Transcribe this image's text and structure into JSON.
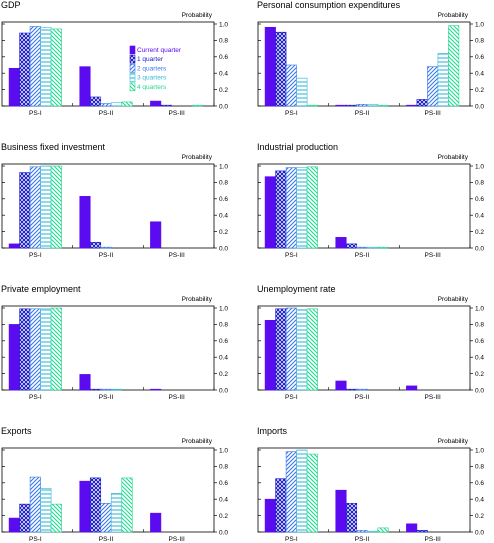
{
  "series_styles": [
    {
      "name": "Current quarter",
      "color": "#5b0bf0",
      "pattern": "solid"
    },
    {
      "name": "1 quarter",
      "color": "#1a1ac8",
      "pattern": "crosshatch"
    },
    {
      "name": "2 quarters",
      "color": "#3a78e8",
      "pattern": "diag-right"
    },
    {
      "name": "3 quarters",
      "color": "#35b8d8",
      "pattern": "horizontal"
    },
    {
      "name": "4 quarters",
      "color": "#22d890",
      "pattern": "diag-left"
    }
  ],
  "chart_data": [
    {
      "type": "bar",
      "title": "GDP",
      "ylabel": "Probability",
      "categories": [
        "PS-I",
        "PS-II",
        "PS-III"
      ],
      "ylim": [
        0,
        1.0
      ],
      "yticks": [
        "0.0",
        "0.2",
        "0.4",
        "0.6",
        "0.8",
        "1.0"
      ],
      "legend": "upper-right",
      "series": [
        {
          "name": "Current quarter",
          "values": [
            0.46,
            0.48,
            0.06
          ]
        },
        {
          "name": "1 quarter",
          "values": [
            0.89,
            0.11,
            0.01
          ]
        },
        {
          "name": "2 quarters",
          "values": [
            0.97,
            0.03,
            0.0
          ]
        },
        {
          "name": "3 quarters",
          "values": [
            0.96,
            0.04,
            0.0
          ]
        },
        {
          "name": "4 quarters",
          "values": [
            0.94,
            0.05,
            0.01
          ]
        }
      ]
    },
    {
      "type": "bar",
      "title": "Personal consumption expenditures",
      "ylabel": "Probability",
      "categories": [
        "PS-I",
        "PS-II",
        "PS-III"
      ],
      "ylim": [
        0,
        1.0
      ],
      "yticks": [
        "0.0",
        "0.2",
        "0.4",
        "0.6",
        "0.8",
        "1.0"
      ],
      "series": [
        {
          "name": "Current quarter",
          "values": [
            0.96,
            0.01,
            0.01
          ]
        },
        {
          "name": "1 quarter",
          "values": [
            0.9,
            0.01,
            0.08
          ]
        },
        {
          "name": "2 quarters",
          "values": [
            0.5,
            0.02,
            0.48
          ]
        },
        {
          "name": "3 quarters",
          "values": [
            0.34,
            0.02,
            0.64
          ]
        },
        {
          "name": "4 quarters",
          "values": [
            0.01,
            0.01,
            0.98
          ]
        }
      ]
    },
    {
      "type": "bar",
      "title": "Business fixed investment",
      "ylabel": "Probability",
      "categories": [
        "PS-I",
        "PS-II",
        "PS-III"
      ],
      "ylim": [
        0,
        1.0
      ],
      "yticks": [
        "0.0",
        "0.2",
        "0.4",
        "0.6",
        "0.8",
        "1.0"
      ],
      "series": [
        {
          "name": "Current quarter",
          "values": [
            0.05,
            0.63,
            0.32
          ]
        },
        {
          "name": "1 quarter",
          "values": [
            0.92,
            0.07,
            0.0
          ]
        },
        {
          "name": "2 quarters",
          "values": [
            0.99,
            0.01,
            0.0
          ]
        },
        {
          "name": "3 quarters",
          "values": [
            1.0,
            0.0,
            0.0
          ]
        },
        {
          "name": "4 quarters",
          "values": [
            1.0,
            0.0,
            0.0
          ]
        }
      ]
    },
    {
      "type": "bar",
      "title": "Industrial production",
      "ylabel": "Probability",
      "categories": [
        "PS-I",
        "PS-II",
        "PS-III"
      ],
      "ylim": [
        0,
        1.0
      ],
      "yticks": [
        "0.0",
        "0.2",
        "0.4",
        "0.6",
        "0.8",
        "1.0"
      ],
      "series": [
        {
          "name": "Current quarter",
          "values": [
            0.87,
            0.13,
            0.0
          ]
        },
        {
          "name": "1 quarter",
          "values": [
            0.94,
            0.05,
            0.0
          ]
        },
        {
          "name": "2 quarters",
          "values": [
            0.98,
            0.01,
            0.0
          ]
        },
        {
          "name": "3 quarters",
          "values": [
            0.98,
            0.01,
            0.0
          ]
        },
        {
          "name": "4 quarters",
          "values": [
            0.99,
            0.01,
            0.0
          ]
        }
      ]
    },
    {
      "type": "bar",
      "title": "Private employment",
      "ylabel": "Probability",
      "categories": [
        "PS-I",
        "PS-II",
        "PS-III"
      ],
      "ylim": [
        0,
        1.0
      ],
      "yticks": [
        "0.0",
        "0.2",
        "0.4",
        "0.6",
        "0.8",
        "1.0"
      ],
      "series": [
        {
          "name": "Current quarter",
          "values": [
            0.8,
            0.19,
            0.01
          ]
        },
        {
          "name": "1 quarter",
          "values": [
            0.99,
            0.01,
            0.0
          ]
        },
        {
          "name": "2 quarters",
          "values": [
            0.99,
            0.01,
            0.0
          ]
        },
        {
          "name": "3 quarters",
          "values": [
            0.99,
            0.01,
            0.0
          ]
        },
        {
          "name": "4 quarters",
          "values": [
            1.0,
            0.0,
            0.0
          ]
        }
      ]
    },
    {
      "type": "bar",
      "title": "Unemployment rate",
      "ylabel": "Probability",
      "categories": [
        "PS-I",
        "PS-II",
        "PS-III"
      ],
      "ylim": [
        0,
        1.0
      ],
      "yticks": [
        "0.0",
        "0.2",
        "0.4",
        "0.6",
        "0.8",
        "1.0"
      ],
      "series": [
        {
          "name": "Current quarter",
          "values": [
            0.85,
            0.11,
            0.05
          ]
        },
        {
          "name": "1 quarter",
          "values": [
            0.99,
            0.01,
            0.0
          ]
        },
        {
          "name": "2 quarters",
          "values": [
            1.0,
            0.01,
            0.0
          ]
        },
        {
          "name": "3 quarters",
          "values": [
            0.98,
            0.0,
            0.0
          ]
        },
        {
          "name": "4 quarters",
          "values": [
            0.99,
            0.0,
            0.0
          ]
        }
      ]
    },
    {
      "type": "bar",
      "title": "Exports",
      "ylabel": "Probability",
      "categories": [
        "PS-I",
        "PS-II",
        "PS-III"
      ],
      "ylim": [
        0,
        1.0
      ],
      "yticks": [
        "0.0",
        "0.2",
        "0.4",
        "0.6",
        "0.8",
        "1.0"
      ],
      "series": [
        {
          "name": "Current quarter",
          "values": [
            0.17,
            0.62,
            0.23
          ]
        },
        {
          "name": "1 quarter",
          "values": [
            0.34,
            0.66,
            0.0
          ]
        },
        {
          "name": "2 quarters",
          "values": [
            0.67,
            0.35,
            0.0
          ]
        },
        {
          "name": "3 quarters",
          "values": [
            0.53,
            0.47,
            0.0
          ]
        },
        {
          "name": "4 quarters",
          "values": [
            0.34,
            0.66,
            0.0
          ]
        }
      ]
    },
    {
      "type": "bar",
      "title": "Imports",
      "ylabel": "Probability",
      "categories": [
        "PS-I",
        "PS-II",
        "PS-III"
      ],
      "ylim": [
        0,
        1.0
      ],
      "yticks": [
        "0.0",
        "0.2",
        "0.4",
        "0.6",
        "0.8",
        "1.0"
      ],
      "series": [
        {
          "name": "Current quarter",
          "values": [
            0.4,
            0.51,
            0.1
          ]
        },
        {
          "name": "1 quarter",
          "values": [
            0.65,
            0.35,
            0.02
          ]
        },
        {
          "name": "2 quarters",
          "values": [
            0.98,
            0.02,
            0.0
          ]
        },
        {
          "name": "3 quarters",
          "values": [
            1.0,
            0.01,
            0.0
          ]
        },
        {
          "name": "4 quarters",
          "values": [
            0.95,
            0.05,
            0.0
          ]
        }
      ]
    }
  ]
}
